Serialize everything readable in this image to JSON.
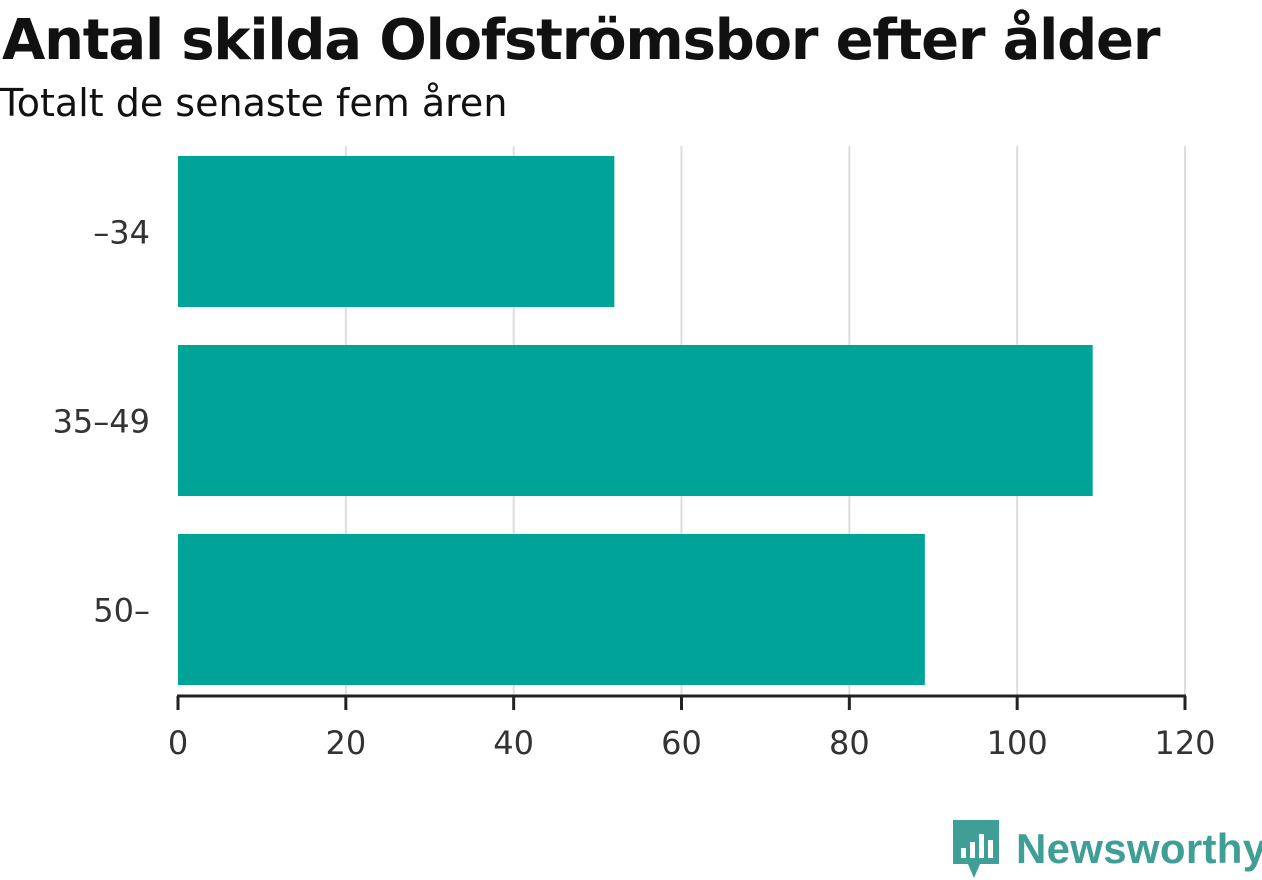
{
  "chart_data": {
    "type": "bar",
    "orientation": "horizontal",
    "title": "Antal skilda Olofströmsbor efter ålder",
    "subtitle": "Totalt de senaste fem åren",
    "categories": [
      "–34",
      "35–49",
      "50–"
    ],
    "values": [
      52,
      109,
      89
    ],
    "xlabel": "",
    "ylabel": "",
    "xlim": [
      0,
      120
    ],
    "x_ticks": [
      0,
      20,
      40,
      60,
      80,
      100,
      120
    ],
    "grid": true,
    "legend": "none",
    "colors": {
      "bar": "#00a398",
      "grid": "#dddddd",
      "axis": "#222222"
    }
  },
  "branding": {
    "logo_text": "Newsworthy",
    "icon": "newsworthy-chart-bubble-icon",
    "color": "#3f9e95"
  }
}
